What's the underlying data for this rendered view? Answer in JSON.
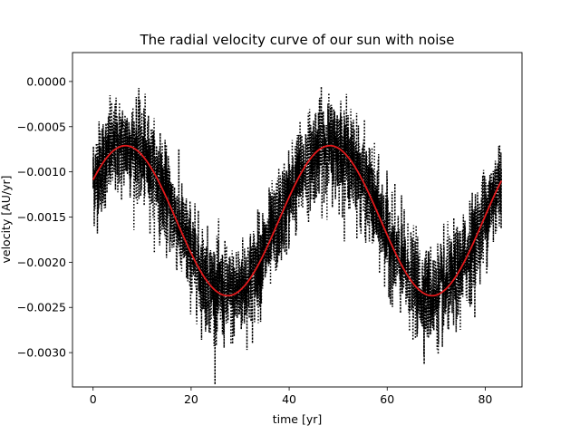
{
  "chart_data": {
    "type": "line",
    "title": "The radial velocity curve of our sun with noise",
    "xlabel": "time [yr]",
    "ylabel": "velocity [AU/yr]",
    "xlim": [
      -4.2,
      87.5
    ],
    "ylim": [
      -0.00338,
      0.00032
    ],
    "xticks": [
      0,
      20,
      40,
      60,
      80
    ],
    "xtick_labels": [
      "0",
      "20",
      "40",
      "60",
      "80"
    ],
    "yticks": [
      0.0,
      -0.0005,
      -0.001,
      -0.0015,
      -0.002,
      -0.0025,
      -0.003
    ],
    "ytick_labels": [
      "0.0000",
      "−0.0005",
      "−0.0010",
      "−0.0015",
      "−0.0020",
      "−0.0025",
      "−0.0030"
    ],
    "grid": false,
    "legend": "none",
    "series": [
      {
        "role": "noisy",
        "style": "dotted",
        "color": "#000000",
        "model": {
          "offset": -0.00154,
          "amplitude": 0.00083,
          "period_yr": 41.7,
          "peak_time_yr": 6.6
        },
        "noise_sd": 0.00026,
        "x_range": [
          0,
          83.3
        ]
      },
      {
        "role": "model",
        "style": "solid",
        "color": "#e41a1c",
        "offset": -0.00154,
        "amplitude": 0.00083,
        "period_yr": 41.7,
        "peak_time_yr": 6.6,
        "x_range": [
          0,
          83.3
        ]
      }
    ]
  }
}
